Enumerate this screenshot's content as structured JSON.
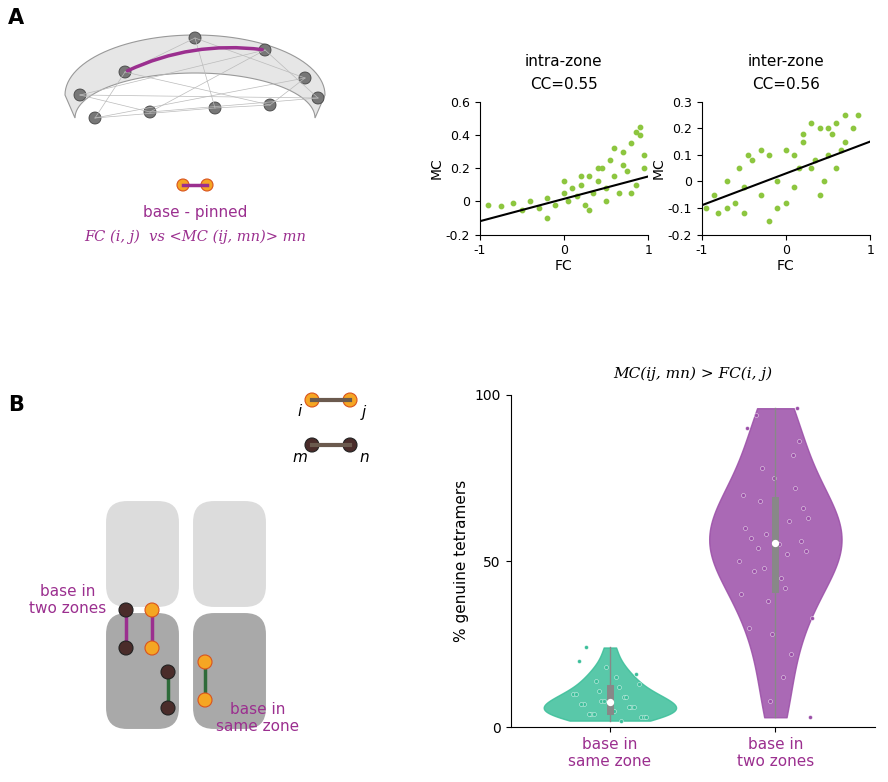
{
  "chart_data": [
    {
      "type": "scatter",
      "title": "intra-zone",
      "subtitle": "CC=0.55",
      "x_label": "FC",
      "y_label": "MC",
      "x": [
        -0.9,
        -0.75,
        -0.6,
        -0.5,
        -0.4,
        -0.3,
        -0.2,
        -0.1,
        0,
        0.05,
        0.1,
        0.15,
        0.2,
        0.25,
        0.3,
        0.35,
        0.4,
        0.45,
        0.5,
        0.55,
        0.6,
        0.65,
        0.7,
        0.75,
        0.8,
        0.85,
        0.9,
        0.95,
        0.3,
        0.5,
        0.7,
        0.9,
        0.6,
        0.8,
        0.4,
        0.2,
        -0.2,
        0.0,
        0.85,
        0.95
      ],
      "values": [
        -0.02,
        -0.03,
        -0.01,
        -0.05,
        0.0,
        -0.04,
        0.02,
        -0.02,
        0.05,
        0.0,
        0.08,
        0.03,
        0.1,
        -0.02,
        0.15,
        0.05,
        0.12,
        0.2,
        0.08,
        0.25,
        0.15,
        0.05,
        0.3,
        0.18,
        0.35,
        0.1,
        0.45,
        0.28,
        -0.05,
        0.0,
        0.22,
        0.4,
        0.32,
        0.05,
        0.2,
        0.15,
        -0.1,
        0.12,
        0.42,
        0.2
      ],
      "color": "#8dc63f",
      "fit": {
        "x": [
          -1,
          1
        ],
        "values": [
          -0.12,
          0.15
        ],
        "color": "#000000"
      },
      "xlim": [
        -1,
        1
      ],
      "ylim": [
        -0.2,
        0.6
      ],
      "xticks": [
        -1,
        0,
        1
      ],
      "yticks": [
        -0.2,
        0,
        0.2,
        0.4,
        0.6
      ]
    },
    {
      "type": "scatter",
      "title": "inter-zone",
      "subtitle": "CC=0.56",
      "x_label": "FC",
      "y_label": "MC",
      "x": [
        -0.95,
        -0.85,
        -0.8,
        -0.7,
        -0.6,
        -0.55,
        -0.5,
        -0.4,
        -0.3,
        -0.2,
        -0.1,
        0,
        0.1,
        0.2,
        0.3,
        0.4,
        0.5,
        0.6,
        0.7,
        0.8,
        0.85,
        -0.5,
        -0.3,
        0,
        0.2,
        0.4,
        0.6,
        -0.7,
        0.1,
        0.5,
        0.3,
        -0.1,
        0.7,
        -0.2,
        0.45,
        0.65,
        -0.45,
        0.15,
        0.35,
        0.55
      ],
      "values": [
        -0.1,
        -0.05,
        -0.12,
        0.0,
        -0.08,
        0.05,
        -0.02,
        0.08,
        -0.05,
        0.1,
        0.0,
        0.12,
        -0.02,
        0.15,
        0.05,
        0.2,
        0.1,
        0.22,
        0.15,
        0.2,
        0.25,
        -0.12,
        0.12,
        -0.08,
        0.18,
        -0.05,
        0.05,
        -0.1,
        0.1,
        0.2,
        0.22,
        -0.1,
        0.25,
        -0.15,
        0.0,
        0.12,
        0.1,
        0.05,
        0.08,
        0.18
      ],
      "color": "#8dc63f",
      "fit": {
        "x": [
          -1,
          1
        ],
        "values": [
          -0.09,
          0.15
        ],
        "color": "#000000"
      },
      "xlim": [
        -1,
        1
      ],
      "ylim": [
        -0.2,
        0.3
      ],
      "xticks": [
        -1,
        0,
        1
      ],
      "yticks": [
        -0.2,
        -0.1,
        0,
        0.1,
        0.2,
        0.3
      ]
    },
    {
      "type": "violin",
      "title": "MC(ij, mn) > FC(i, j)",
      "y_label": "% genuine tetramers",
      "categories": [
        "base in\nsame zone",
        "base in\ntwo zones"
      ],
      "values": [
        [
          2,
          3,
          3,
          4,
          4,
          5,
          5,
          5,
          6,
          6,
          7,
          7,
          8,
          8,
          9,
          10,
          10,
          11,
          12,
          13,
          14,
          15,
          16,
          18,
          20,
          24,
          3,
          4,
          6,
          9
        ],
        [
          3,
          8,
          15,
          22,
          28,
          33,
          38,
          42,
          45,
          48,
          50,
          52,
          54,
          55,
          56,
          58,
          60,
          62,
          65,
          68,
          70,
          72,
          75,
          78,
          82,
          86,
          90,
          94,
          96,
          40,
          47,
          53,
          57,
          63,
          30,
          66
        ]
      ],
      "colors": [
        "#3cbf9a",
        "#9b4fa8"
      ],
      "ylim": [
        0,
        100
      ],
      "yticks": [
        0,
        50,
        100
      ]
    }
  ],
  "diagram": {
    "A": {
      "letter": "A",
      "caption": "base - pinned",
      "formula": "FC (i, j)  vs <MC (ij, mn)> mn"
    },
    "B": {
      "letter": "B",
      "node_labels": [
        "i",
        "j",
        "m",
        "n"
      ],
      "two_zones_label": "base in\ntwo zones",
      "same_zone_label": "base in\nsame zone"
    }
  }
}
